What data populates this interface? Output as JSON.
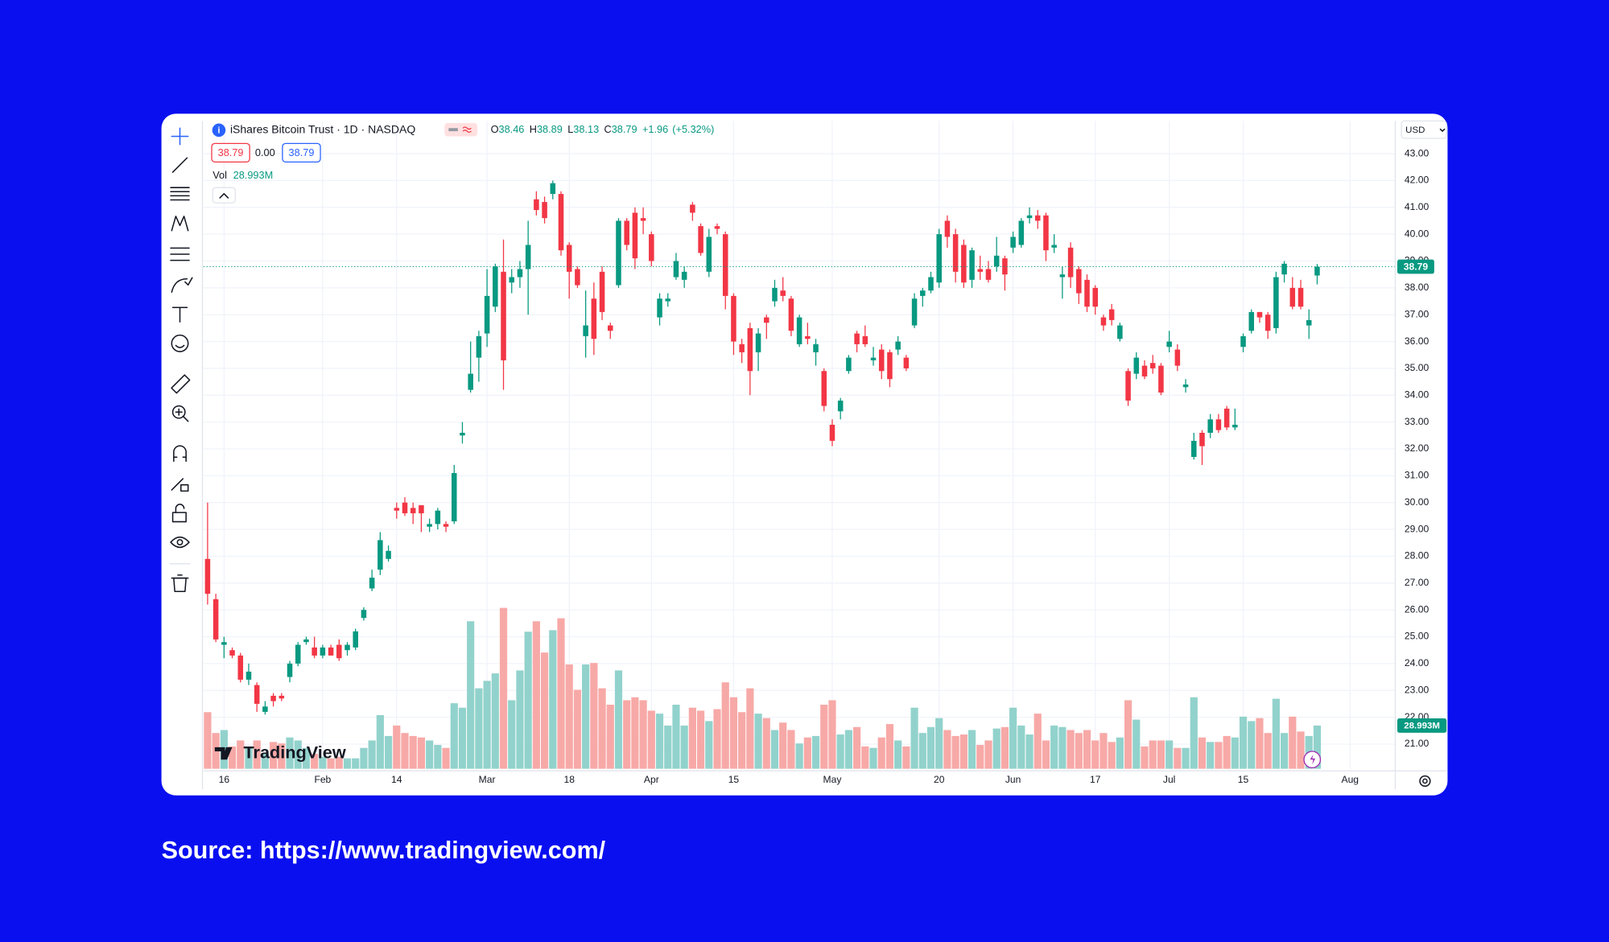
{
  "header": {
    "title": "iShares Bitcoin Trust · 1D · NASDAQ",
    "ohlc_labels": [
      "O",
      "H",
      "L",
      "C"
    ],
    "change": "+1.96",
    "change_pct": "(+5.32%)",
    "bid": "38.79",
    "spread": "0.00",
    "ask": "38.79",
    "vol_label": "Vol",
    "vol_value": "28.993M",
    "currency": "USD",
    "logo": "TradingView"
  },
  "chart_data": {
    "type": "candlestick",
    "categories": [
      null,
      null,
      "16",
      null,
      null,
      null,
      null,
      null,
      null,
      null,
      null,
      null,
      null,
      null,
      "Feb",
      null,
      null,
      null,
      null,
      null,
      null,
      null,
      null,
      "14",
      null,
      null,
      null,
      null,
      null,
      null,
      null,
      null,
      null,
      null,
      "Mar",
      null,
      null,
      null,
      null,
      null,
      null,
      null,
      null,
      null,
      "18",
      null,
      null,
      null,
      null,
      null,
      null,
      null,
      null,
      null,
      "Apr",
      null,
      null,
      null,
      null,
      null,
      null,
      null,
      null,
      null,
      "15",
      null,
      null,
      null,
      null,
      null,
      null,
      null,
      null,
      null,
      null,
      null,
      "May",
      null,
      null,
      null,
      null,
      null,
      null,
      null,
      null,
      null,
      null,
      null,
      null,
      "20",
      null,
      null,
      null,
      null,
      null,
      null,
      null,
      null,
      "Jun",
      null,
      null,
      null,
      null,
      null,
      null,
      null,
      null,
      null,
      "17",
      null,
      null,
      null,
      null,
      null,
      null,
      null,
      null,
      "Jul",
      null,
      null,
      null,
      null,
      null,
      null,
      null,
      null,
      "15",
      null,
      null,
      null,
      null,
      null,
      null,
      null,
      null,
      null,
      null,
      null,
      null,
      "Aug",
      null,
      null,
      null,
      null,
      null
    ],
    "open": [
      27.9,
      26.4,
      24.7,
      24.5,
      24.3,
      23.4,
      23.2,
      22.2,
      22.8,
      22.8,
      23.5,
      24.0,
      24.8,
      24.6,
      24.3,
      24.6,
      24.7,
      24.5,
      24.6,
      25.7,
      26.8,
      27.5,
      27.9,
      29.8,
      30.0,
      29.8,
      29.9,
      29.1,
      29.2,
      29.2,
      29.3,
      32.5,
      34.2,
      35.4,
      36.3,
      37.3,
      38.6,
      38.2,
      38.4,
      38.7,
      41.3,
      41.2,
      41.5,
      41.5,
      39.6,
      38.7,
      36.2,
      37.6,
      38.6,
      36.6,
      38.1,
      40.5,
      40.8,
      40.6,
      40.0,
      36.9,
      37.5,
      38.4,
      38.3,
      41.1,
      40.3,
      38.6,
      40.3,
      40.0,
      37.7,
      35.9,
      36.5,
      35.6,
      36.9,
      37.5,
      37.9,
      37.6,
      35.9,
      36.2,
      35.6,
      34.9,
      32.9,
      33.4,
      34.9,
      36.3,
      36.2,
      35.3,
      35.7,
      35.6,
      35.7,
      35.4,
      36.6,
      37.7,
      37.9,
      38.2,
      40.5,
      40.0,
      39.6,
      38.3,
      38.7,
      38.7,
      38.8,
      39.1,
      39.5,
      39.6,
      40.6,
      40.7,
      40.7,
      39.5,
      38.4,
      39.5,
      38.7,
      38.3,
      38.0,
      36.9,
      37.2,
      36.1,
      34.9,
      34.8,
      35.1,
      35.2,
      35.1,
      35.8,
      35.7,
      34.3,
      31.7,
      32.6,
      32.6,
      33.1,
      33.5,
      32.8,
      35.8,
      36.4,
      37.1,
      37.0,
      36.5,
      38.5,
      38.0,
      38.0,
      36.6,
      38.46,
      null,
      null,
      null,
      null,
      null,
      null,
      null,
      null,
      null
    ],
    "high": [
      30.0,
      26.6,
      25.0,
      24.6,
      24.4,
      24.0,
      23.3,
      22.6,
      22.9,
      22.9,
      24.1,
      24.8,
      25.0,
      25.0,
      24.7,
      24.7,
      24.9,
      24.8,
      25.3,
      26.1,
      27.5,
      28.9,
      28.4,
      30.0,
      30.2,
      30.0,
      29.9,
      29.4,
      29.8,
      29.3,
      31.4,
      33.0,
      36.0,
      36.4,
      38.7,
      38.9,
      39.8,
      38.7,
      39.0,
      40.5,
      41.6,
      41.4,
      42.0,
      41.6,
      39.7,
      38.8,
      37.9,
      38.2,
      38.8,
      36.7,
      40.6,
      40.6,
      41.0,
      41.0,
      40.1,
      37.8,
      37.8,
      39.3,
      38.8,
      41.2,
      40.4,
      40.2,
      40.4,
      40.1,
      37.8,
      36.1,
      36.7,
      36.5,
      37.0,
      38.3,
      38.4,
      37.7,
      37.0,
      36.7,
      36.1,
      35.0,
      33.1,
      33.9,
      35.5,
      36.4,
      36.6,
      35.8,
      35.9,
      35.7,
      36.2,
      35.5,
      37.8,
      38.0,
      38.6,
      40.2,
      40.7,
      40.2,
      39.8,
      39.5,
      39.2,
      39.0,
      39.9,
      39.2,
      40.1,
      40.6,
      41.0,
      40.9,
      40.8,
      40.0,
      38.8,
      39.7,
      38.8,
      38.5,
      38.1,
      37.0,
      37.4,
      36.7,
      35.0,
      35.6,
      35.3,
      35.5,
      35.2,
      36.4,
      35.9,
      34.6,
      32.6,
      32.7,
      33.3,
      33.3,
      33.6,
      33.5,
      36.3,
      37.2,
      37.1,
      37.1,
      38.6,
      39.0,
      38.4,
      38.3,
      37.2,
      38.89,
      null,
      null,
      null,
      null,
      null,
      null,
      null,
      null,
      null
    ],
    "low": [
      26.2,
      24.8,
      24.2,
      24.2,
      23.3,
      23.2,
      22.2,
      22.1,
      22.4,
      22.6,
      23.3,
      23.9,
      24.7,
      24.2,
      24.2,
      24.3,
      24.1,
      24.3,
      24.5,
      25.6,
      26.7,
      27.3,
      27.8,
      29.4,
      29.5,
      29.2,
      28.9,
      28.9,
      29.0,
      28.9,
      29.2,
      32.2,
      34.1,
      34.5,
      35.8,
      37.1,
      34.2,
      37.8,
      38.0,
      37.0,
      40.7,
      40.4,
      41.3,
      39.2,
      37.6,
      38.0,
      35.4,
      35.5,
      36.8,
      36.1,
      38.0,
      39.4,
      38.7,
      40.0,
      38.8,
      36.6,
      37.3,
      38.3,
      38.0,
      40.5,
      39.2,
      38.4,
      40.0,
      37.2,
      35.5,
      35.2,
      34.0,
      34.9,
      36.1,
      37.3,
      37.5,
      36.2,
      35.8,
      35.9,
      35.1,
      33.4,
      32.1,
      33.1,
      34.8,
      35.6,
      35.8,
      35.1,
      34.6,
      34.3,
      35.5,
      34.9,
      36.5,
      37.3,
      37.8,
      38.0,
      39.5,
      38.2,
      38.0,
      38.0,
      38.3,
      38.2,
      38.6,
      37.9,
      39.3,
      39.5,
      40.4,
      40.2,
      39.0,
      39.3,
      37.6,
      38.0,
      37.4,
      37.1,
      37.0,
      36.4,
      36.6,
      36.0,
      33.6,
      34.6,
      34.6,
      34.8,
      34.0,
      35.6,
      34.9,
      34.1,
      31.6,
      31.4,
      32.4,
      32.6,
      32.7,
      32.7,
      35.6,
      36.3,
      36.7,
      36.1,
      36.3,
      38.2,
      37.2,
      37.2,
      36.1,
      38.13,
      null,
      null,
      null,
      null,
      null,
      null,
      null,
      null,
      null
    ],
    "close": [
      26.6,
      24.9,
      24.8,
      24.3,
      23.4,
      23.7,
      22.5,
      22.4,
      22.6,
      22.7,
      24.0,
      24.7,
      24.9,
      24.3,
      24.6,
      24.3,
      24.2,
      24.7,
      25.2,
      26.0,
      27.2,
      28.6,
      28.2,
      29.7,
      29.6,
      29.6,
      29.6,
      29.2,
      29.7,
      29.1,
      31.1,
      32.6,
      34.8,
      36.2,
      37.7,
      38.8,
      35.3,
      38.4,
      38.7,
      39.6,
      40.9,
      40.6,
      41.9,
      39.4,
      38.6,
      38.1,
      36.6,
      36.1,
      37.1,
      36.4,
      40.5,
      39.6,
      39.1,
      40.5,
      39.0,
      37.6,
      37.6,
      39.0,
      38.6,
      40.8,
      39.3,
      39.9,
      40.2,
      37.7,
      36.0,
      35.6,
      34.9,
      36.3,
      36.7,
      38.0,
      37.7,
      36.4,
      36.9,
      36.1,
      35.9,
      33.6,
      32.3,
      33.8,
      35.4,
      35.9,
      35.9,
      35.4,
      34.9,
      34.6,
      36.0,
      35.0,
      37.6,
      37.9,
      38.4,
      40.0,
      39.9,
      38.6,
      38.2,
      39.4,
      38.6,
      38.3,
      39.2,
      38.5,
      39.9,
      40.5,
      40.7,
      40.5,
      39.4,
      39.6,
      38.5,
      38.4,
      37.8,
      37.3,
      37.3,
      36.6,
      36.8,
      36.6,
      33.8,
      35.4,
      34.7,
      35.0,
      34.1,
      36.0,
      35.1,
      34.4,
      32.3,
      32.1,
      33.1,
      32.7,
      32.8,
      32.9,
      36.2,
      37.1,
      36.9,
      36.4,
      38.4,
      38.9,
      37.3,
      37.3,
      36.8,
      38.79,
      null,
      null,
      null,
      null,
      null,
      null,
      null,
      null,
      null
    ],
    "volume": [
      38,
      24,
      26,
      15,
      19,
      15,
      19,
      10,
      18,
      17,
      21,
      19,
      14,
      10,
      8,
      7,
      8,
      7,
      7,
      14,
      19,
      36,
      22,
      29,
      24,
      22,
      21,
      19,
      16,
      14,
      44,
      41,
      99,
      54,
      59,
      64,
      108,
      46,
      66,
      92,
      99,
      78,
      93,
      101,
      70,
      53,
      70,
      71,
      54,
      43,
      66,
      46,
      48,
      46,
      39,
      37,
      29,
      43,
      29,
      41,
      39,
      32,
      40,
      58,
      48,
      38,
      54,
      37,
      34,
      26,
      31,
      26,
      17,
      21,
      22,
      43,
      46,
      23,
      26,
      28,
      15,
      14,
      21,
      30,
      19,
      15,
      41,
      24,
      28,
      34,
      26,
      22,
      23,
      26,
      16,
      19,
      27,
      28,
      41,
      29,
      23,
      37,
      19,
      29,
      28,
      26,
      24,
      26,
      19,
      24,
      18,
      21,
      46,
      33,
      15,
      19,
      19,
      19,
      14,
      14,
      48,
      21,
      18,
      18,
      22,
      21,
      35,
      32,
      34,
      24,
      47,
      24,
      35,
      25,
      22,
      28.993,
      null,
      null,
      null,
      null,
      null,
      null,
      null,
      null,
      null
    ],
    "ylim": [
      20.08,
      44.22
    ],
    "yticks": [
      {
        "value": 21,
        "label": "21.00"
      },
      {
        "value": 22,
        "label": "22.00"
      },
      {
        "value": 23,
        "label": "23.00"
      },
      {
        "value": 24,
        "label": "24.00"
      },
      {
        "value": 25,
        "label": "25.00"
      },
      {
        "value": 26,
        "label": "26.00"
      },
      {
        "value": 27,
        "label": "27.00"
      },
      {
        "value": 28,
        "label": "28.00"
      },
      {
        "value": 29,
        "label": "29.00"
      },
      {
        "value": 30,
        "label": "30.00"
      },
      {
        "value": 31,
        "label": "31.00"
      },
      {
        "value": 32,
        "label": "32.00"
      },
      {
        "value": 33,
        "label": "33.00"
      },
      {
        "value": 34,
        "label": "34.00"
      },
      {
        "value": 35,
        "label": "35.00"
      },
      {
        "value": 36,
        "label": "36.00"
      },
      {
        "value": 37,
        "label": "37.00"
      },
      {
        "value": 38,
        "label": "38.00"
      },
      {
        "value": 39,
        "label": "39.00"
      },
      {
        "value": 40,
        "label": "40.00"
      },
      {
        "value": 41,
        "label": "41.00"
      },
      {
        "value": 42,
        "label": "42.00"
      },
      {
        "value": 43,
        "label": "43.00"
      }
    ],
    "grid": true,
    "up_color": "#089981",
    "down_color": "#f23645",
    "volume_up_color": "#92d2cc",
    "volume_down_color": "#f7a9a7"
  },
  "source": "Source: https://www.tradingview.com/"
}
